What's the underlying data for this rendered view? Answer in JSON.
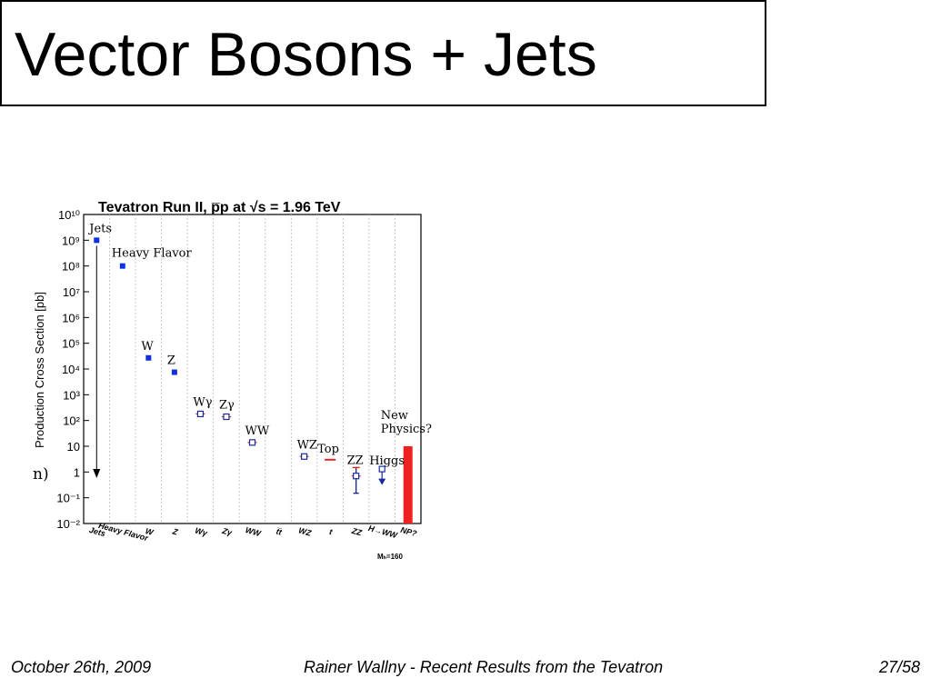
{
  "slide": {
    "title": "Vector Bosons + Jets",
    "footer_date": "October 26th, 2009",
    "footer_center": "Rainer Wallny - Recent Results from the Tevatron",
    "footer_page": "27/58",
    "left_cut_text": "n)"
  },
  "chart_data": {
    "type": "scatter",
    "title": "Tevatron Run II, p̅p at √s = 1.96 TeV",
    "ylabel": "Production Cross Section [pb]",
    "yscale": "log",
    "ylim": [
      0.01,
      10000000000
    ],
    "yticks": [
      "10¹⁰",
      "10⁹",
      "10⁸",
      "10⁷",
      "10⁶",
      "10⁵",
      "10⁴",
      "10³",
      "10²",
      "10",
      "1",
      "10⁻¹",
      "10⁻²"
    ],
    "categories": [
      "Jets",
      "Heavy Flavor",
      "W",
      "Z",
      "Wγ",
      "Zγ",
      "WW",
      "t̅t",
      "WZ",
      "t",
      "ZZ",
      "H→WW",
      "NP?"
    ],
    "points": [
      {
        "category": "Jets",
        "label": "Jets",
        "value": 1000000000,
        "style": "filled-square",
        "arrow": "down"
      },
      {
        "category": "Heavy Flavor",
        "label": "Heavy Flavor",
        "value": 100000000,
        "style": "filled-square"
      },
      {
        "category": "W",
        "label": "W",
        "value": 27000,
        "style": "filled-square"
      },
      {
        "category": "Z",
        "label": "Z",
        "value": 7500,
        "style": "filled-square"
      },
      {
        "category": "Wγ",
        "label": "Wγ",
        "value": 180,
        "style": "open-square"
      },
      {
        "category": "Zγ",
        "label": "Zγ",
        "value": 140,
        "style": "open-square"
      },
      {
        "category": "WW",
        "label": "WW",
        "value": 14,
        "style": "open-square"
      },
      {
        "category": "WZ",
        "label": "WZ",
        "value": 4,
        "style": "open-square"
      },
      {
        "category": "t",
        "label": "Top",
        "value": 3,
        "style": "red-dash"
      },
      {
        "category": "ZZ",
        "label": "ZZ",
        "value": 0.7,
        "style": "open-square",
        "err_low": 0.15,
        "err_high": 1.5
      },
      {
        "category": "H→WW",
        "label": "Higgs",
        "value": 0.4,
        "style": "limit",
        "limit_top": 1.3
      },
      {
        "category": "NP?",
        "label": "New Physics?",
        "value": 10,
        "style": "red-bar"
      }
    ],
    "annotation": "Mₕ=160",
    "colors": {
      "filled": "#1030e0",
      "open": "#1a2a9a",
      "red": "#ee2222"
    }
  }
}
